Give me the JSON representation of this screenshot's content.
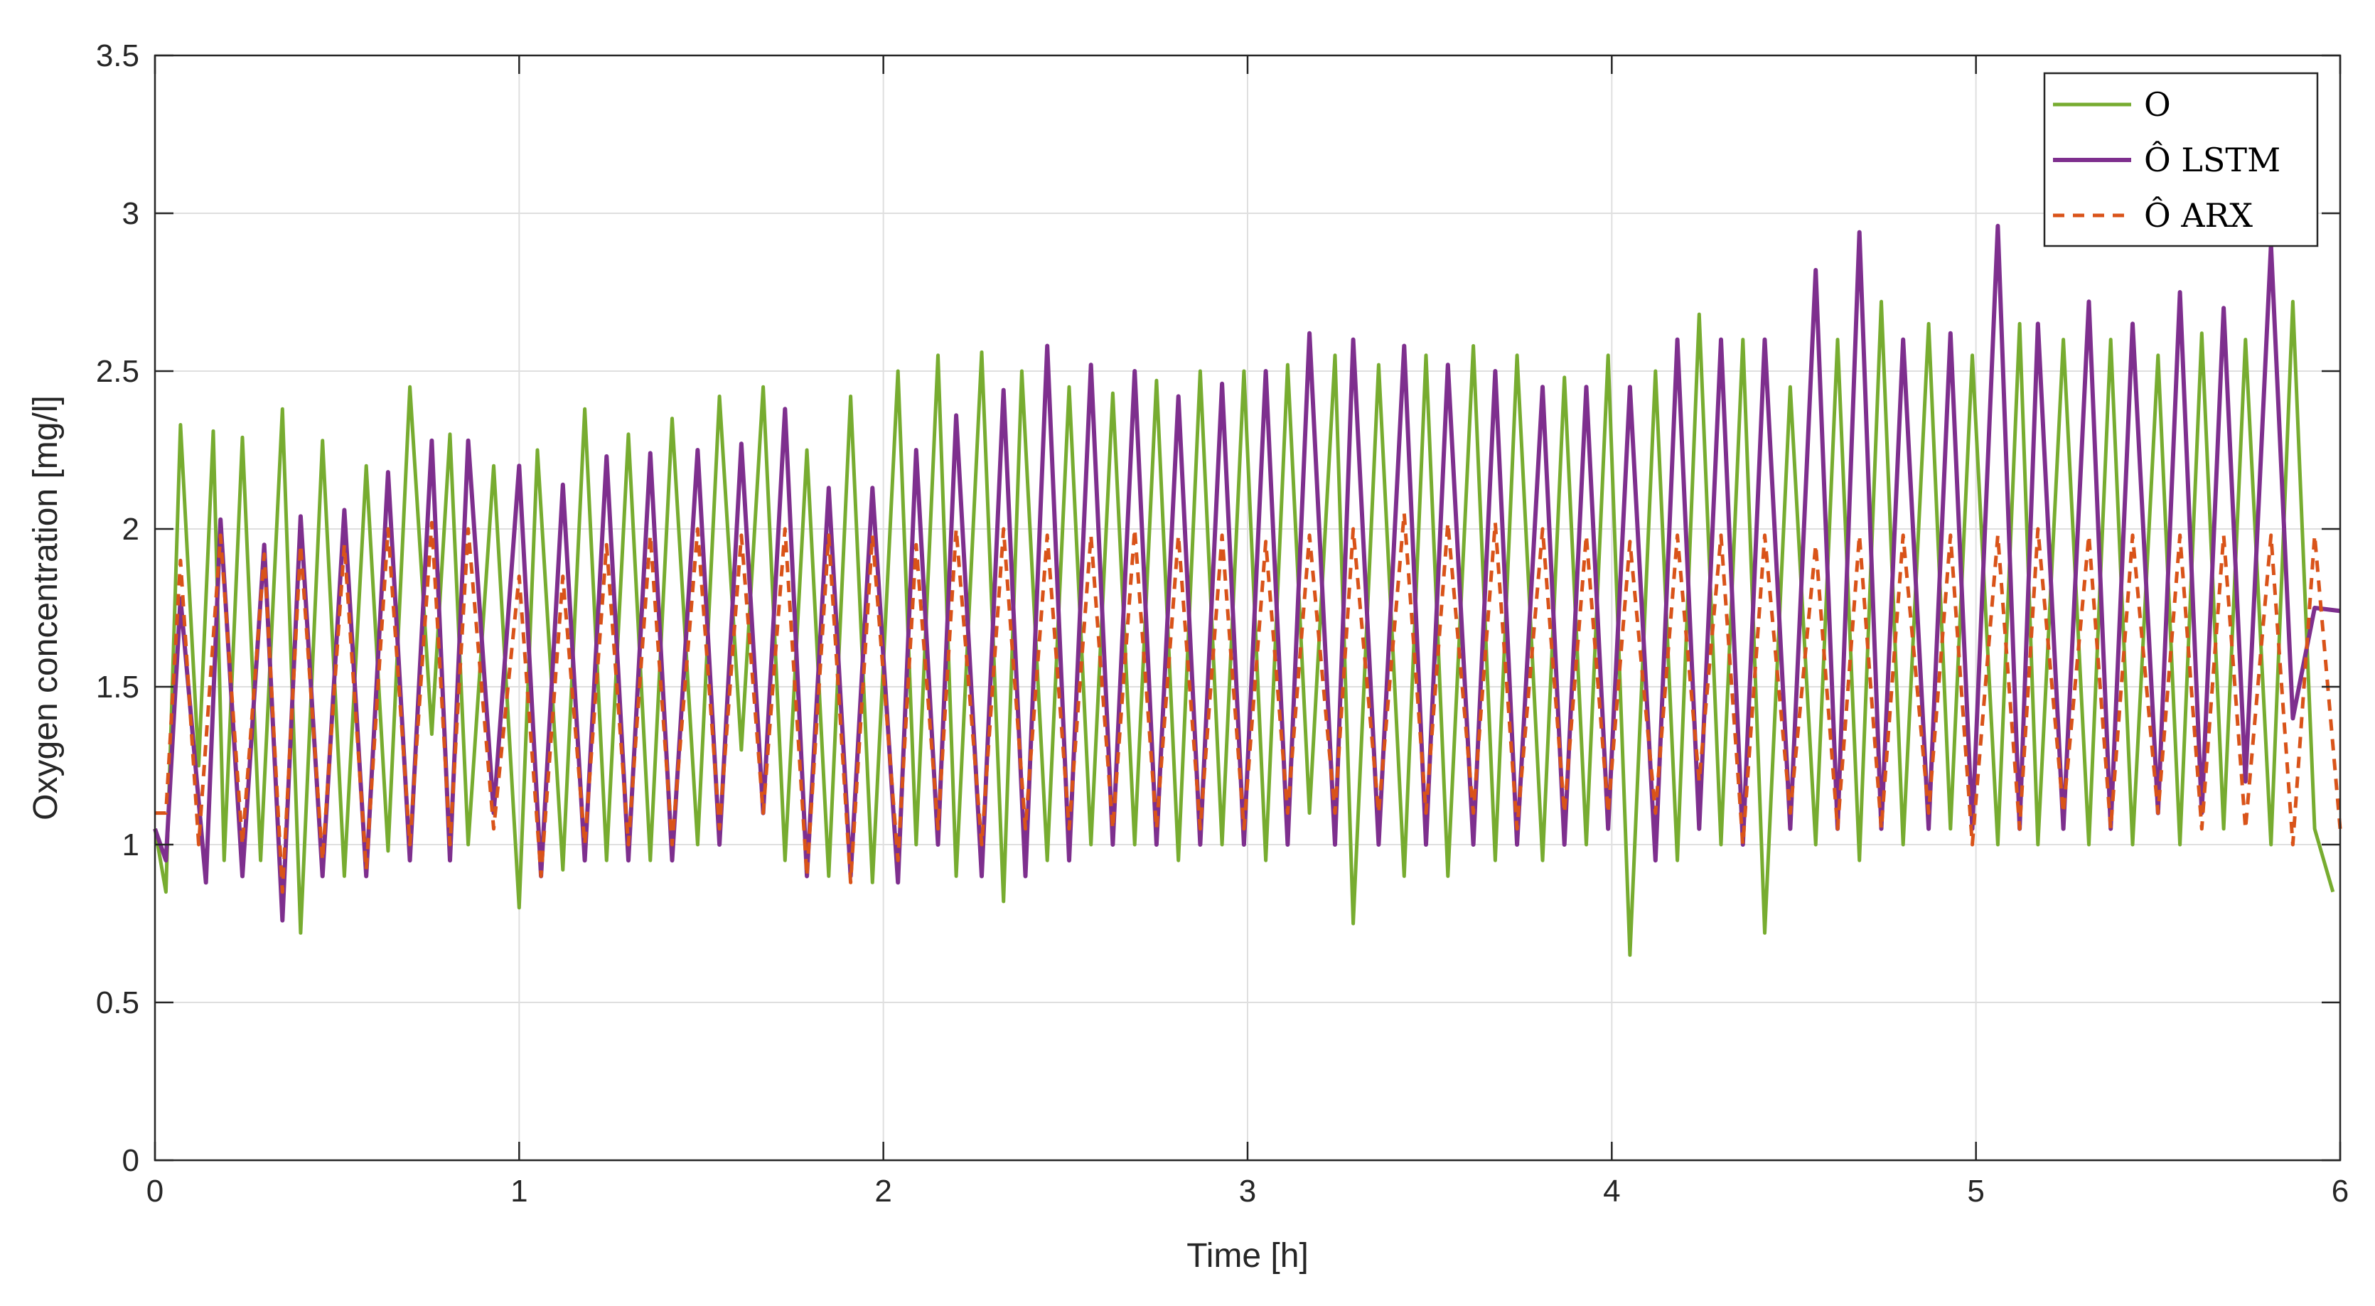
{
  "chart_data": {
    "type": "line",
    "title": "",
    "xlabel": "Time [h]",
    "ylabel": "Oxygen concentration [mg/l]",
    "xlim": [
      0,
      6
    ],
    "ylim": [
      0,
      3.5
    ],
    "xticks": [
      0,
      1,
      2,
      3,
      4,
      5,
      6
    ],
    "xtick_labels": [
      "0",
      "1",
      "2",
      "3",
      "4",
      "5",
      "6"
    ],
    "yticks": [
      0,
      0.5,
      1,
      1.5,
      2,
      2.5,
      3,
      3.5
    ],
    "ytick_labels": [
      "0",
      "0.5",
      "1",
      "1.5",
      "2",
      "2.5",
      "3",
      "3.5"
    ],
    "grid": true,
    "legend_position": "top-right",
    "colors": {
      "O": "#77ac30",
      "LSTM": "#7e2f8e",
      "ARX": "#d95319"
    },
    "series": [
      {
        "name": "O",
        "style": "solid",
        "x": [
          0,
          0.03,
          0.07,
          0.12,
          0.16,
          0.19,
          0.24,
          0.29,
          0.35,
          0.4,
          0.46,
          0.52,
          0.58,
          0.64,
          0.7,
          0.76,
          0.81,
          0.86,
          0.93,
          1.0,
          1.05,
          1.12,
          1.18,
          1.24,
          1.3,
          1.36,
          1.42,
          1.49,
          1.55,
          1.61,
          1.67,
          1.73,
          1.79,
          1.85,
          1.91,
          1.97,
          2.04,
          2.09,
          2.15,
          2.2,
          2.27,
          2.33,
          2.38,
          2.45,
          2.51,
          2.57,
          2.63,
          2.69,
          2.75,
          2.81,
          2.87,
          2.93,
          2.99,
          3.05,
          3.11,
          3.17,
          3.24,
          3.29,
          3.36,
          3.43,
          3.49,
          3.55,
          3.62,
          3.68,
          3.74,
          3.81,
          3.87,
          3.93,
          3.99,
          4.05,
          4.12,
          4.18,
          4.24,
          4.3,
          4.36,
          4.42,
          4.49,
          4.56,
          4.62,
          4.68,
          4.74,
          4.8,
          4.87,
          4.93,
          4.99,
          5.06,
          5.12,
          5.17,
          5.24,
          5.31,
          5.37,
          5.43,
          5.5,
          5.56,
          5.62,
          5.68,
          5.74,
          5.81,
          5.87,
          5.93,
          5.98
        ],
        "y": [
          1.05,
          0.85,
          2.33,
          1.25,
          2.31,
          0.95,
          2.29,
          0.95,
          2.38,
          0.72,
          2.28,
          0.9,
          2.2,
          0.98,
          2.45,
          1.35,
          2.3,
          1.0,
          2.2,
          0.8,
          2.25,
          0.92,
          2.38,
          0.95,
          2.3,
          0.95,
          2.35,
          1.0,
          2.42,
          1.3,
          2.45,
          0.95,
          2.25,
          0.9,
          2.42,
          0.88,
          2.5,
          1.0,
          2.55,
          0.9,
          2.56,
          0.82,
          2.5,
          0.95,
          2.45,
          1.0,
          2.43,
          1.0,
          2.47,
          0.95,
          2.5,
          1.0,
          2.5,
          0.95,
          2.52,
          1.1,
          2.55,
          0.75,
          2.52,
          0.9,
          2.55,
          0.9,
          2.58,
          0.95,
          2.55,
          0.95,
          2.48,
          1.0,
          2.55,
          0.65,
          2.5,
          0.95,
          2.68,
          1.0,
          2.6,
          0.72,
          2.45,
          1.0,
          2.6,
          0.95,
          2.72,
          1.0,
          2.65,
          1.05,
          2.55,
          1.0,
          2.65,
          1.0,
          2.6,
          1.0,
          2.6,
          1.0,
          2.55,
          1.0,
          2.62,
          1.05,
          2.6,
          1.0,
          2.72,
          1.05,
          0.85
        ]
      },
      {
        "name": "Ô LSTM",
        "style": "solid",
        "x": [
          0,
          0.03,
          0.07,
          0.14,
          0.18,
          0.24,
          0.3,
          0.35,
          0.4,
          0.46,
          0.52,
          0.58,
          0.64,
          0.7,
          0.76,
          0.81,
          0.86,
          0.93,
          1.0,
          1.06,
          1.12,
          1.18,
          1.24,
          1.3,
          1.36,
          1.42,
          1.49,
          1.55,
          1.61,
          1.67,
          1.73,
          1.79,
          1.85,
          1.91,
          1.97,
          2.04,
          2.09,
          2.15,
          2.2,
          2.27,
          2.33,
          2.39,
          2.45,
          2.51,
          2.57,
          2.63,
          2.69,
          2.75,
          2.81,
          2.87,
          2.93,
          2.99,
          3.05,
          3.11,
          3.17,
          3.24,
          3.29,
          3.36,
          3.43,
          3.49,
          3.55,
          3.62,
          3.68,
          3.74,
          3.81,
          3.87,
          3.93,
          3.99,
          4.05,
          4.12,
          4.18,
          4.24,
          4.3,
          4.36,
          4.42,
          4.49,
          4.56,
          4.62,
          4.68,
          4.74,
          4.8,
          4.87,
          4.93,
          4.99,
          5.06,
          5.12,
          5.17,
          5.24,
          5.31,
          5.37,
          5.43,
          5.5,
          5.56,
          5.62,
          5.68,
          5.74,
          5.81,
          5.87,
          5.93,
          6.0
        ],
        "y": [
          1.05,
          0.95,
          1.78,
          0.88,
          2.03,
          0.9,
          1.95,
          0.76,
          2.04,
          0.9,
          2.06,
          0.9,
          2.18,
          0.95,
          2.28,
          0.95,
          2.28,
          1.1,
          2.2,
          0.9,
          2.14,
          0.95,
          2.23,
          0.95,
          2.24,
          0.95,
          2.25,
          1.0,
          2.27,
          1.1,
          2.38,
          0.9,
          2.13,
          0.9,
          2.13,
          0.88,
          2.25,
          1.0,
          2.36,
          0.9,
          2.44,
          0.9,
          2.58,
          0.95,
          2.52,
          1.0,
          2.5,
          1.0,
          2.42,
          1.0,
          2.46,
          1.0,
          2.5,
          1.0,
          2.62,
          1.0,
          2.6,
          1.0,
          2.58,
          1.0,
          2.52,
          1.0,
          2.5,
          1.0,
          2.45,
          1.0,
          2.45,
          1.05,
          2.45,
          0.95,
          2.6,
          1.05,
          2.6,
          1.0,
          2.6,
          1.05,
          2.82,
          1.05,
          2.94,
          1.05,
          2.6,
          1.05,
          2.62,
          1.05,
          2.96,
          1.05,
          2.65,
          1.05,
          2.72,
          1.05,
          2.65,
          1.1,
          2.75,
          1.1,
          2.7,
          1.2,
          2.9,
          1.4,
          1.75,
          1.74
        ]
      },
      {
        "name": "Ô ARX",
        "style": "dashed",
        "x": [
          0,
          0.03,
          0.07,
          0.12,
          0.18,
          0.24,
          0.3,
          0.35,
          0.4,
          0.46,
          0.52,
          0.58,
          0.64,
          0.7,
          0.76,
          0.81,
          0.86,
          0.93,
          1.0,
          1.06,
          1.12,
          1.18,
          1.24,
          1.3,
          1.36,
          1.42,
          1.49,
          1.55,
          1.61,
          1.67,
          1.73,
          1.79,
          1.85,
          1.91,
          1.97,
          2.04,
          2.09,
          2.15,
          2.2,
          2.27,
          2.33,
          2.39,
          2.45,
          2.51,
          2.57,
          2.63,
          2.69,
          2.75,
          2.81,
          2.87,
          2.93,
          2.99,
          3.05,
          3.11,
          3.17,
          3.24,
          3.29,
          3.36,
          3.43,
          3.49,
          3.55,
          3.62,
          3.68,
          3.74,
          3.81,
          3.87,
          3.93,
          3.99,
          4.05,
          4.12,
          4.18,
          4.24,
          4.3,
          4.36,
          4.42,
          4.49,
          4.56,
          4.62,
          4.68,
          4.74,
          4.8,
          4.87,
          4.93,
          4.99,
          5.06,
          5.12,
          5.17,
          5.24,
          5.31,
          5.37,
          5.43,
          5.5,
          5.56,
          5.62,
          5.68,
          5.74,
          5.81,
          5.87,
          5.93,
          6.0
        ],
        "y": [
          1.1,
          1.1,
          1.9,
          1.0,
          1.98,
          1.0,
          1.92,
          0.85,
          1.95,
          0.95,
          1.95,
          0.92,
          2.0,
          1.0,
          2.02,
          1.0,
          2.0,
          1.05,
          1.85,
          0.9,
          1.85,
          1.0,
          1.95,
          1.0,
          1.98,
          1.0,
          2.0,
          1.05,
          1.98,
          1.1,
          2.0,
          0.9,
          1.98,
          0.88,
          1.98,
          0.95,
          1.95,
          1.05,
          2.0,
          1.0,
          2.0,
          1.05,
          1.98,
          1.05,
          1.98,
          1.05,
          2.0,
          1.05,
          1.98,
          1.05,
          1.98,
          1.05,
          1.96,
          1.1,
          1.98,
          1.1,
          2.0,
          1.1,
          2.05,
          1.1,
          2.02,
          1.1,
          2.02,
          1.05,
          2.0,
          1.1,
          1.98,
          1.1,
          1.96,
          1.1,
          1.98,
          1.2,
          1.98,
          1.0,
          1.98,
          1.1,
          1.95,
          1.05,
          1.98,
          1.05,
          1.98,
          1.1,
          1.98,
          1.0,
          1.98,
          1.05,
          2.0,
          1.1,
          1.98,
          1.05,
          1.98,
          1.1,
          1.98,
          1.05,
          1.98,
          1.05,
          1.98,
          1.0,
          1.98,
          1.05
        ]
      }
    ]
  }
}
